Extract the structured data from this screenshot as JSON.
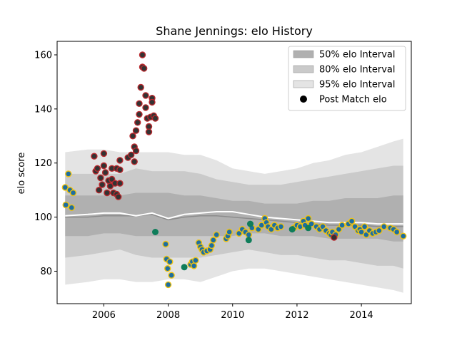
{
  "chart_data": {
    "type": "scatter",
    "title": "Shane Jennings: elo History",
    "xlabel": "",
    "ylabel": "elo score",
    "xlim": [
      2004.55,
      2015.55
    ],
    "ylim": [
      68,
      165
    ],
    "x_ticks": [
      2006,
      2008,
      2010,
      2012,
      2014
    ],
    "y_ticks": [
      80,
      100,
      120,
      140,
      160
    ],
    "grid": false,
    "legend_position": "top-right",
    "legend": [
      {
        "label": "50% elo Interval",
        "kind": "band",
        "color": "#b0b0b0"
      },
      {
        "label": "80% elo Interval",
        "kind": "band",
        "color": "#cacaca"
      },
      {
        "label": "95% elo Interval",
        "kind": "band",
        "color": "#e4e4e4"
      },
      {
        "label": "Post Match elo",
        "kind": "marker",
        "color": "#000000"
      }
    ],
    "colors": {
      "band50": "#b0b0b0",
      "band80": "#cacaca",
      "band95": "#e4e4e4",
      "median_line": "#ffffff",
      "mean_line": "#8c8c8c",
      "marker_yellow_edge": "#f0c20f",
      "marker_blue_fill": "#1e6ea0",
      "marker_red_edge": "#b8282d",
      "marker_dark_fill": "#333333",
      "marker_green_fill": "#0f7d5a"
    },
    "interval_x": [
      2004.8,
      2005.5,
      2006.0,
      2006.5,
      2007.0,
      2007.5,
      2008.0,
      2008.5,
      2009.0,
      2009.5,
      2010.0,
      2010.5,
      2011.0,
      2011.5,
      2012.0,
      2012.5,
      2013.0,
      2013.5,
      2014.0,
      2014.5,
      2015.0,
      2015.3
    ],
    "band95_lower": [
      75,
      76,
      77,
      77,
      76,
      76,
      77,
      77,
      76,
      78,
      80,
      81,
      81,
      80,
      79,
      78,
      77,
      76,
      75,
      74,
      73,
      72
    ],
    "band95_upper": [
      124,
      125,
      125,
      124,
      124,
      124,
      124,
      123,
      123,
      121,
      118,
      117,
      116,
      117,
      118,
      120,
      121,
      123,
      124,
      126,
      128,
      129
    ],
    "band80_lower": [
      85,
      86,
      87,
      88,
      86,
      85,
      85,
      85,
      85,
      86,
      87,
      88,
      87,
      86,
      86,
      85,
      84,
      84,
      83,
      82,
      82,
      81
    ],
    "band80_upper": [
      116,
      116,
      116,
      116,
      118,
      117,
      117,
      117,
      116,
      114,
      113,
      112,
      112,
      112,
      113,
      114,
      115,
      116,
      117,
      118,
      119,
      119
    ],
    "band50_lower": [
      93,
      93,
      94,
      94,
      93,
      93,
      93,
      93,
      93,
      93,
      93,
      94,
      94,
      93,
      93,
      93,
      92,
      92,
      92,
      92,
      91,
      91
    ],
    "band50_upper": [
      108,
      108,
      108,
      108,
      109,
      109,
      109,
      108,
      108,
      107,
      106,
      106,
      105,
      105,
      105,
      106,
      106,
      107,
      107,
      107,
      108,
      108
    ],
    "median_line": [
      100.5,
      101,
      101.5,
      101.5,
      100.5,
      101.5,
      99.5,
      101,
      101.5,
      102,
      102,
      101,
      100,
      99.5,
      99,
      98.5,
      98,
      98,
      98,
      97.5,
      97.5,
      97.5
    ],
    "mean_line": [
      100,
      100,
      100.5,
      100.5,
      100.5,
      101,
      99,
      100,
      100.5,
      100.5,
      100,
      99.5,
      99,
      98.5,
      98,
      97.5,
      97,
      97,
      97,
      96.5,
      96.5,
      96.5
    ],
    "series": [
      {
        "marker_style": "blue-fill yellow-edge",
        "points": [
          [
            2004.8,
            111
          ],
          [
            2004.82,
            104.5
          ],
          [
            2004.9,
            116
          ],
          [
            2004.95,
            110
          ],
          [
            2005.0,
            103.5
          ],
          [
            2005.05,
            109
          ],
          [
            2007.92,
            90
          ],
          [
            2007.95,
            84.5
          ],
          [
            2007.98,
            81
          ],
          [
            2008.0,
            75
          ],
          [
            2008.05,
            83.5
          ],
          [
            2008.1,
            78.5
          ],
          [
            2008.7,
            82.5
          ],
          [
            2008.75,
            83.5
          ],
          [
            2008.8,
            82
          ],
          [
            2008.85,
            84
          ],
          [
            2008.95,
            90.5
          ],
          [
            2009.0,
            89
          ],
          [
            2009.05,
            88
          ],
          [
            2009.1,
            87
          ],
          [
            2009.2,
            87.5
          ],
          [
            2009.3,
            88
          ],
          [
            2009.35,
            89.5
          ],
          [
            2009.4,
            91.5
          ],
          [
            2009.5,
            93.5
          ],
          [
            2009.8,
            92
          ],
          [
            2009.85,
            93
          ],
          [
            2009.9,
            94.5
          ],
          [
            2010.2,
            94
          ],
          [
            2010.3,
            95.5
          ],
          [
            2010.4,
            94.5
          ],
          [
            2010.5,
            93.5
          ],
          [
            2010.6,
            96
          ],
          [
            2010.8,
            95.5
          ],
          [
            2010.9,
            97
          ],
          [
            2011.0,
            99.5
          ],
          [
            2011.05,
            98
          ],
          [
            2011.1,
            96.5
          ],
          [
            2011.2,
            95.5
          ],
          [
            2011.3,
            97
          ],
          [
            2011.4,
            96
          ],
          [
            2011.5,
            96.5
          ],
          [
            2011.9,
            96
          ],
          [
            2012.0,
            97
          ],
          [
            2012.1,
            96.5
          ],
          [
            2012.2,
            98.5
          ],
          [
            2012.25,
            97
          ],
          [
            2012.35,
            99.5
          ],
          [
            2012.45,
            97.5
          ],
          [
            2012.6,
            96.5
          ],
          [
            2012.7,
            95.5
          ],
          [
            2012.8,
            96.5
          ],
          [
            2012.9,
            95
          ],
          [
            2013.0,
            94
          ],
          [
            2013.05,
            93.5
          ],
          [
            2013.1,
            94.5
          ],
          [
            2013.2,
            93.5
          ],
          [
            2013.3,
            95.5
          ],
          [
            2013.4,
            97
          ],
          [
            2013.6,
            97.5
          ],
          [
            2013.7,
            98.5
          ],
          [
            2013.8,
            96.5
          ],
          [
            2013.9,
            95
          ],
          [
            2013.95,
            95.5
          ],
          [
            2014.0,
            94.5
          ],
          [
            2014.1,
            96.5
          ],
          [
            2014.15,
            93.5
          ],
          [
            2014.25,
            95
          ],
          [
            2014.35,
            94
          ],
          [
            2014.45,
            94.5
          ],
          [
            2014.55,
            95
          ],
          [
            2014.7,
            96.5
          ],
          [
            2014.9,
            96
          ],
          [
            2015.0,
            95.5
          ],
          [
            2015.1,
            94.5
          ],
          [
            2015.3,
            93
          ]
        ]
      },
      {
        "marker_style": "dark-fill red-edge",
        "points": [
          [
            2005.7,
            122.5
          ],
          [
            2005.75,
            117
          ],
          [
            2005.8,
            118
          ],
          [
            2005.85,
            110
          ],
          [
            2005.9,
            114.5
          ],
          [
            2005.95,
            112
          ],
          [
            2006.0,
            123.5
          ],
          [
            2006.0,
            119
          ],
          [
            2006.05,
            116.5
          ],
          [
            2006.1,
            109
          ],
          [
            2006.15,
            113.5
          ],
          [
            2006.2,
            111.5
          ],
          [
            2006.25,
            118
          ],
          [
            2006.25,
            114
          ],
          [
            2006.3,
            109
          ],
          [
            2006.35,
            112.5
          ],
          [
            2006.4,
            118
          ],
          [
            2006.4,
            108.5
          ],
          [
            2006.45,
            107.5
          ],
          [
            2006.5,
            112.5
          ],
          [
            2006.5,
            117.5
          ],
          [
            2006.5,
            121
          ],
          [
            2006.75,
            122
          ],
          [
            2006.85,
            123
          ],
          [
            2006.9,
            130
          ],
          [
            2006.95,
            126
          ],
          [
            2006.95,
            120.5
          ],
          [
            2007.0,
            124.5
          ],
          [
            2007.0,
            132
          ],
          [
            2007.05,
            135
          ],
          [
            2007.1,
            138
          ],
          [
            2007.1,
            142
          ],
          [
            2007.15,
            148
          ],
          [
            2007.2,
            155.5
          ],
          [
            2007.2,
            160
          ],
          [
            2007.25,
            155
          ],
          [
            2007.3,
            145
          ],
          [
            2007.3,
            140.5
          ],
          [
            2007.35,
            136.5
          ],
          [
            2007.4,
            133.5
          ],
          [
            2007.4,
            131.5
          ],
          [
            2007.45,
            137
          ],
          [
            2007.5,
            144
          ],
          [
            2007.5,
            142.5
          ],
          [
            2007.55,
            137.5
          ],
          [
            2007.6,
            136.5
          ],
          [
            2013.15,
            92.5
          ]
        ]
      },
      {
        "marker_style": "green-fill",
        "points": [
          [
            2007.6,
            94.5
          ],
          [
            2008.5,
            81.5
          ],
          [
            2010.5,
            91.5
          ],
          [
            2010.55,
            97.5
          ],
          [
            2011.85,
            95.5
          ],
          [
            2012.35,
            96
          ]
        ]
      }
    ]
  }
}
